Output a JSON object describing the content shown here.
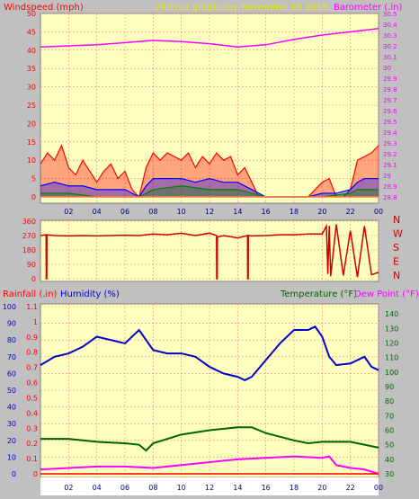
{
  "header": {
    "title": "24 hour graph day   November 15 2015",
    "wind_label": "Windspeed (mph)",
    "baro_label": "Barometer (.in)"
  },
  "colors": {
    "background": "#c0c0c0",
    "plot_bg": "#ffffc0",
    "grid": "#ff8080",
    "title": "#e6e600",
    "wind_gust": "#ff0000",
    "wind_avg": "#0000ff",
    "wind_low": "#008000",
    "barometer": "#ff00ff",
    "direction": "#d00000",
    "rain": "#ff0000",
    "humidity": "#0000cc",
    "temperature": "#006400",
    "dew_point": "#ff00ff",
    "bottom_panel_bg": "#ffffff"
  },
  "x_ticks": [
    "02",
    "04",
    "06",
    "08",
    "10",
    "12",
    "14",
    "16",
    "18",
    "20",
    "22",
    "00"
  ],
  "chart_data": [
    {
      "type": "line",
      "name": "wind-barometer",
      "title": "24 hour graph day   November 15 2015",
      "xlabel": "",
      "ylabel_left": "Windspeed (mph)",
      "ylabel_right": "Barometer (.in)",
      "x_range_hours": [
        0,
        24
      ],
      "y_left_range": [
        0,
        50
      ],
      "y_left_ticks": [
        "0",
        "5",
        "10",
        "15",
        "20",
        "25",
        "30",
        "35",
        "40",
        "45",
        "50"
      ],
      "y_right_range": [
        28.8,
        30.5
      ],
      "y_right_ticks": [
        "28.8",
        "28.9",
        "29",
        "29.1",
        "29.2",
        "29.3",
        "29.4",
        "29.5",
        "29.6",
        "29.7",
        "29.8",
        "29.9",
        "30",
        "30.1",
        "30.2",
        "30.3",
        "30.4",
        "30.5"
      ],
      "grid": true,
      "series": [
        {
          "name": "Barometer",
          "axis": "right",
          "x": [
            0,
            2,
            4,
            6,
            8,
            10,
            12,
            14,
            16,
            18,
            20,
            22,
            24
          ],
          "values": [
            30.19,
            30.2,
            30.21,
            30.23,
            30.25,
            30.24,
            30.22,
            30.19,
            30.21,
            30.26,
            30.3,
            30.33,
            30.36
          ]
        },
        {
          "name": "Wind gust",
          "axis": "left",
          "x": [
            0,
            0.5,
            1,
            1.5,
            2,
            2.5,
            3,
            3.5,
            4,
            4.5,
            5,
            5.5,
            6,
            6.5,
            7,
            7.5,
            8,
            8.5,
            9,
            9.5,
            10,
            10.5,
            11,
            11.5,
            12,
            12.5,
            13,
            13.5,
            14,
            14.5,
            15,
            15.5,
            16,
            16.5,
            17,
            17.5,
            18,
            18.5,
            19,
            19.5,
            20,
            20.5,
            21,
            21.5,
            22,
            22.5,
            23,
            23.5,
            24
          ],
          "values": [
            9,
            12,
            10,
            14,
            8,
            6,
            10,
            7,
            4,
            7,
            9,
            5,
            7,
            2,
            0,
            8,
            12,
            10,
            12,
            11,
            10,
            12,
            8,
            11,
            9,
            12,
            10,
            11,
            6,
            8,
            4,
            0,
            0,
            0,
            0,
            0,
            0,
            0,
            0,
            2,
            4,
            5,
            0,
            0,
            2,
            10,
            11,
            12,
            14
          ]
        },
        {
          "name": "Wind average",
          "axis": "left",
          "x": [
            0,
            1,
            2,
            3,
            4,
            5,
            6,
            7,
            7.5,
            8,
            9,
            10,
            11,
            12,
            13,
            14,
            15,
            16,
            17,
            18,
            19,
            20,
            21,
            22,
            22.5,
            23,
            24
          ],
          "values": [
            3,
            4,
            3,
            3,
            2,
            2,
            2,
            0,
            3,
            5,
            5,
            5,
            4,
            5,
            4,
            4,
            2,
            0,
            0,
            0,
            0,
            1,
            1,
            2,
            4,
            5,
            5
          ]
        },
        {
          "name": "Wind low",
          "axis": "left",
          "x": [
            0,
            2,
            4,
            6,
            7,
            7.5,
            8,
            10,
            12,
            14,
            15,
            16,
            18,
            20,
            22,
            22.5,
            24
          ],
          "values": [
            1,
            1,
            0,
            0,
            0,
            1,
            2,
            3,
            2,
            2,
            1,
            0,
            0,
            0,
            1,
            2,
            2
          ]
        }
      ]
    },
    {
      "type": "line",
      "name": "wind-direction",
      "title": "",
      "xlabel": "",
      "ylabel": "",
      "x_range_hours": [
        0,
        24
      ],
      "y_range": [
        0,
        360
      ],
      "y_ticks": [
        "0",
        "90",
        "180",
        "270",
        "360"
      ],
      "compass_labels": [
        "N",
        "W",
        "S",
        "E",
        "N"
      ],
      "grid": true,
      "series": [
        {
          "name": "Wind direction",
          "x": [
            0,
            0.4,
            0.41,
            0.45,
            0.46,
            1,
            2,
            3,
            4,
            5,
            6,
            7,
            8,
            9,
            10,
            11,
            12,
            12.5,
            12.51,
            12.55,
            12.56,
            13,
            14,
            14.7,
            14.71,
            14.75,
            14.76,
            15,
            16,
            17,
            18,
            19,
            20,
            20.3,
            20.4,
            20.5,
            20.6,
            21,
            21.5,
            22,
            22.5,
            23,
            23.5,
            24
          ],
          "values": [
            270,
            275,
            0,
            0,
            275,
            270,
            268,
            270,
            268,
            270,
            272,
            270,
            280,
            275,
            285,
            270,
            285,
            270,
            0,
            0,
            260,
            270,
            255,
            270,
            0,
            0,
            270,
            268,
            270,
            275,
            275,
            280,
            280,
            330,
            30,
            330,
            15,
            340,
            20,
            300,
            10,
            330,
            25,
            40
          ]
        }
      ]
    },
    {
      "type": "line",
      "name": "rain-humidity-temperature",
      "title": "",
      "xlabel": "",
      "ylabel_left": "Rainfall (.in)",
      "ylabel_left2": "Humidity (%)",
      "ylabel_right": "Temperature (°F)",
      "ylabel_right2": "Dew Point (°F)",
      "x_range_hours": [
        0,
        24
      ],
      "humidity_range": [
        0,
        100
      ],
      "humidity_ticks": [
        "0",
        "10",
        "20",
        "30",
        "40",
        "50",
        "60",
        "70",
        "80",
        "90",
        "100"
      ],
      "rain_range": [
        0,
        1.1
      ],
      "rain_ticks": [
        "0",
        "0.1",
        "0.2",
        "0.3",
        "0.4",
        "0.5",
        "0.6",
        "0.7",
        "0.8",
        "0.9",
        "1",
        "1.1"
      ],
      "temp_range": [
        30,
        145
      ],
      "temp_ticks": [
        "30",
        "40",
        "50",
        "60",
        "70",
        "80",
        "90",
        "100",
        "110",
        "120",
        "130",
        "140"
      ],
      "grid": true,
      "series": [
        {
          "name": "Humidity",
          "axis": "humidity",
          "x": [
            0,
            1,
            2,
            3,
            4,
            5,
            6,
            7,
            7.5,
            8,
            9,
            10,
            11,
            12,
            13,
            14,
            14.5,
            15,
            16,
            17,
            18,
            19,
            19.5,
            20,
            20.5,
            21,
            22,
            23,
            23.5,
            24
          ],
          "values": [
            65,
            70,
            72,
            76,
            82,
            80,
            78,
            86,
            80,
            74,
            72,
            72,
            70,
            64,
            60,
            58,
            56,
            58,
            68,
            78,
            86,
            86,
            88,
            82,
            70,
            65,
            66,
            70,
            64,
            62
          ]
        },
        {
          "name": "Temperature",
          "axis": "temp",
          "x": [
            0,
            2,
            4,
            6,
            7,
            7.5,
            8,
            10,
            12,
            14,
            15,
            16,
            18,
            19,
            20,
            22,
            24
          ],
          "values": [
            54,
            54,
            52,
            51,
            50,
            46,
            51,
            57,
            60,
            62,
            62,
            58,
            53,
            51,
            52,
            52,
            48
          ]
        },
        {
          "name": "Dew Point",
          "axis": "temp",
          "x": [
            0,
            2,
            4,
            6,
            8,
            10,
            12,
            14,
            16,
            18,
            20,
            20.5,
            21,
            22,
            23,
            24
          ],
          "values": [
            33,
            34,
            35,
            35,
            34,
            36,
            38,
            40,
            41,
            42,
            41,
            42,
            36,
            34,
            33,
            30
          ]
        },
        {
          "name": "Rainfall",
          "axis": "rain",
          "x": [
            0,
            24
          ],
          "values": [
            0,
            0
          ]
        }
      ]
    }
  ]
}
